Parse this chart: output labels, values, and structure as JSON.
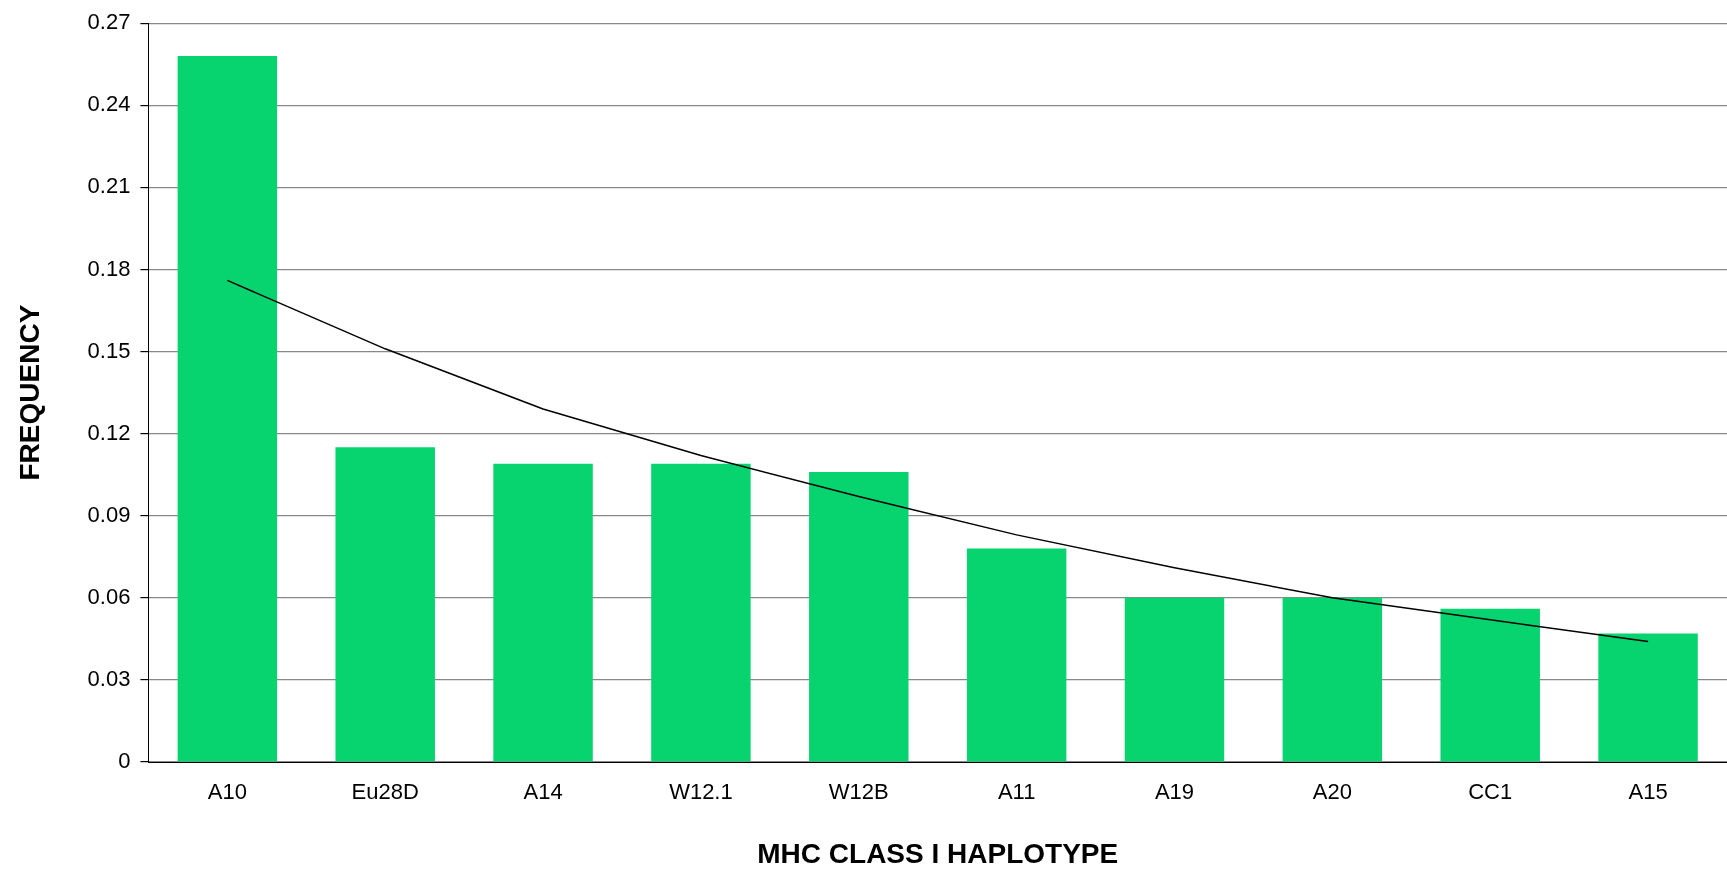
{
  "chart_data": {
    "type": "bar",
    "xlabel": "MHC CLASS I HAPLOTYPE",
    "ylabel": "FREQUENCY",
    "categories": [
      "A10",
      "Eu28D",
      "A14",
      "W12.1",
      "W12B",
      "A11",
      "A19",
      "A20",
      "CC1",
      "A15"
    ],
    "series": [
      {
        "color": "#07d46f",
        "values": [
          0.258,
          0.115,
          0.109,
          0.109,
          0.106,
          0.078,
          0.06,
          0.06,
          0.056,
          0.047
        ]
      },
      {
        "type": "line",
        "color": "#000000",
        "x": [
          "A10",
          "Eu28D",
          "A14",
          "W12.1",
          "W12B",
          "A11",
          "A19",
          "A20",
          "CC1",
          "A15"
        ],
        "values": [
          0.176,
          0.151,
          0.129,
          0.112,
          0.097,
          0.083,
          0.071,
          0.06,
          0.052,
          0.044
        ]
      }
    ],
    "ylim": [
      0,
      0.27
    ],
    "yticks": [
      0,
      0.03,
      0.06,
      0.09,
      0.12,
      0.15,
      0.18,
      0.21,
      0.24,
      0.27
    ],
    "grid": "y",
    "legend": false,
    "marker": "none",
    "line_style": "solid"
  }
}
